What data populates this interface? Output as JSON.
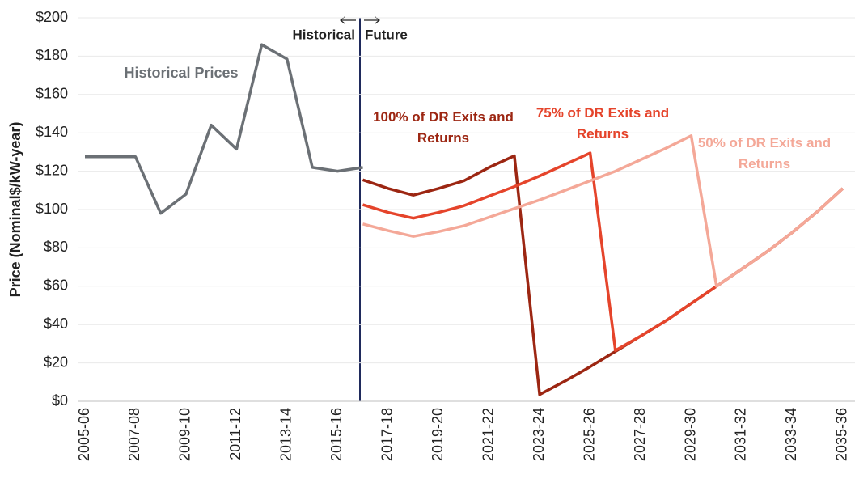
{
  "chart_data": {
    "type": "line",
    "y_label": "Price (Nominal$/kW-year)",
    "annotations": [
      "Historical",
      "Future"
    ],
    "categories": [
      "2005-06",
      null,
      "2007-08",
      null,
      "2009-10",
      null,
      "2011-12",
      null,
      "2013-14",
      null,
      "2015-16",
      null,
      "2017-18",
      null,
      "2019-20",
      null,
      "2021-22",
      null,
      "2023-24",
      null,
      "2025-26",
      null,
      "2027-28",
      null,
      "2029-30",
      null,
      "2031-32",
      null,
      "2033-34",
      null,
      "2035-36"
    ],
    "series": [
      {
        "name": "Historical Prices",
        "color": "#6b7075",
        "values": [
          127.5,
          127.5,
          127.5,
          98,
          108,
          144,
          131.5,
          186,
          178.5,
          122,
          120,
          122,
          null,
          null,
          null,
          null,
          null,
          null,
          null,
          null,
          null,
          null,
          null,
          null,
          null,
          null,
          null,
          null,
          null,
          null,
          null
        ]
      },
      {
        "name": "100% of DR Exits and Returns",
        "color": "#9c2612",
        "values": [
          null,
          null,
          null,
          null,
          null,
          null,
          null,
          null,
          null,
          null,
          null,
          115.5,
          111,
          107.5,
          111,
          115,
          122,
          128,
          3.5,
          10.5,
          18,
          26,
          34,
          42,
          51,
          60,
          69,
          78,
          88,
          99,
          111
        ]
      },
      {
        "name": "75% of DR Exits and Returns",
        "color": "#e5442b",
        "values": [
          null,
          null,
          null,
          null,
          null,
          null,
          null,
          null,
          null,
          null,
          null,
          102.5,
          98.5,
          95.5,
          98.5,
          102,
          107,
          112,
          117.5,
          123.5,
          129.5,
          26.5,
          34,
          42,
          51,
          60,
          69,
          78,
          88,
          99,
          111
        ]
      },
      {
        "name": "50% of DR Exits and Returns",
        "color": "#f4a898",
        "values": [
          null,
          null,
          null,
          null,
          null,
          null,
          null,
          null,
          null,
          null,
          null,
          92.5,
          89,
          86,
          88.5,
          91.5,
          96,
          100.5,
          105,
          110,
          115,
          120,
          126,
          132,
          138.5,
          60,
          69,
          78,
          88,
          99,
          111
        ]
      }
    ],
    "ylim": [
      0,
      200
    ],
    "yticks": [
      {
        "value": 0,
        "label": "$0"
      },
      {
        "value": 20,
        "label": "$20"
      },
      {
        "value": 40,
        "label": "$40"
      },
      {
        "value": 60,
        "label": "$60"
      },
      {
        "value": 80,
        "label": "$80"
      },
      {
        "value": 100,
        "label": "$100"
      },
      {
        "value": 120,
        "label": "$120"
      },
      {
        "value": 140,
        "label": "$140"
      },
      {
        "value": 160,
        "label": "$160"
      },
      {
        "value": 180,
        "label": "$180"
      },
      {
        "value": 200,
        "label": "$200"
      }
    ],
    "grid": true
  }
}
